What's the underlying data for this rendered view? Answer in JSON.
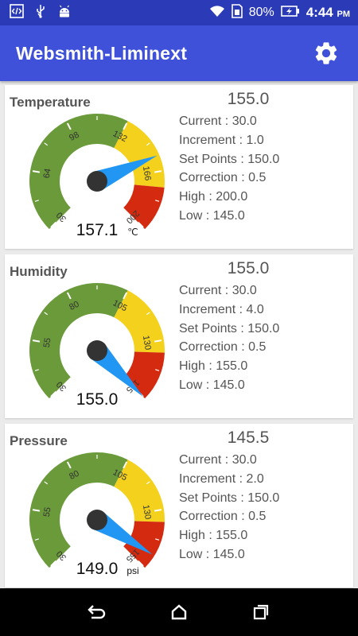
{
  "status_bar": {
    "left_icons": [
      "code-icon",
      "usb-icon",
      "android-icon"
    ],
    "battery": "80%",
    "time": "4:44",
    "ampm": "PM"
  },
  "app_bar": {
    "title": "Websmith-Liminext",
    "settings_icon": "gear-icon"
  },
  "colors": {
    "primary": "#3f51d8",
    "status": "#2b3ab6",
    "green": "#6a9a3a",
    "yellow": "#f3d11d",
    "red": "#d42a10",
    "needle": "#2196f3",
    "hub": "#333333"
  },
  "cards": [
    {
      "label": "Temperature",
      "value": "155.0",
      "gauge_value": "157.1",
      "unit": "℃",
      "ticks": [
        "30",
        "64",
        "98",
        "132",
        "166",
        "200"
      ],
      "zones": {
        "green_end": 132,
        "yellow_end": 175
      },
      "needle": 157.1,
      "info": {
        "current": "Current : 30.0",
        "increment": "Increment : 1.0",
        "set_points": "Set Points : 150.0",
        "correction": "Correction : 0.5",
        "high": "High : 200.0",
        "low": "Low : 145.0"
      }
    },
    {
      "label": "Humidity",
      "value": "155.0",
      "gauge_value": "155.0",
      "unit": "",
      "ticks": [
        "30",
        "55",
        "80",
        "105",
        "130",
        "155"
      ],
      "zones": {
        "green_end": 105,
        "yellow_end": 135
      },
      "needle": 155.0,
      "info": {
        "current": "Current : 30.0",
        "increment": "Increment : 4.0",
        "set_points": "Set Points : 150.0",
        "correction": "Correction : 0.5",
        "high": "High : 155.0",
        "low": "Low : 145.0"
      }
    },
    {
      "label": "Pressure",
      "value": "145.5",
      "gauge_value": "149.0",
      "unit": "psi",
      "ticks": [
        "30",
        "55",
        "80",
        "105",
        "130",
        "155"
      ],
      "zones": {
        "green_end": 105,
        "yellow_end": 135
      },
      "needle": 149.0,
      "info": {
        "current": "Current : 30.0",
        "increment": "Increment : 2.0",
        "set_points": "Set Points : 150.0",
        "correction": "Correction : 0.5",
        "high": "High : 155.0",
        "low": "Low : 145.0"
      }
    }
  ],
  "nav_bar": {
    "icons": [
      "back-icon",
      "home-icon",
      "recents-icon"
    ]
  }
}
